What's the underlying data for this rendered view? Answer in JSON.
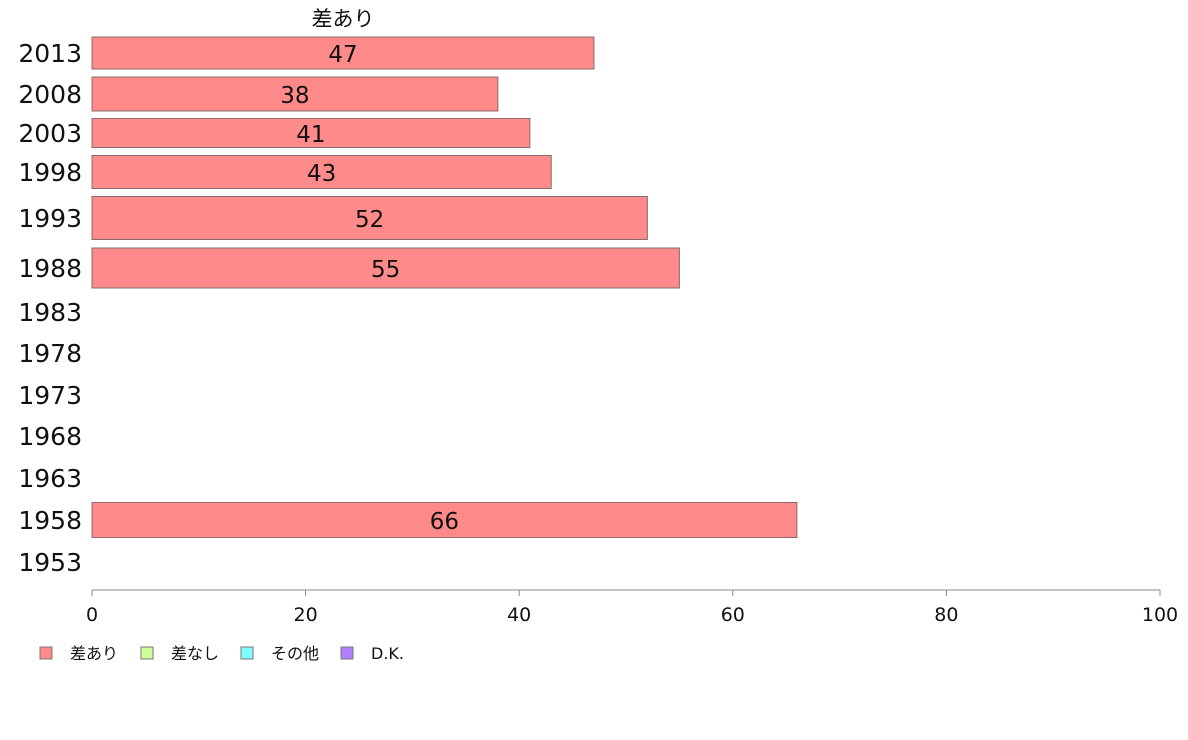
{
  "chart_data": {
    "type": "bar",
    "orientation": "horizontal",
    "title": "",
    "xlabel": "",
    "ylabel": "",
    "xlim": [
      0,
      100
    ],
    "x_ticks": [
      "0",
      "20",
      "40",
      "60",
      "80",
      "100"
    ],
    "grid": false,
    "legend_position": "bottom-left",
    "categories": [
      "2013",
      "2008",
      "2003",
      "1998",
      "1993",
      "1988",
      "1983",
      "1978",
      "1973",
      "1968",
      "1963",
      "1958",
      "1953"
    ],
    "series": [
      {
        "name": "差あり",
        "color": "#ff8a8a",
        "values": [
          47,
          38,
          41,
          43,
          52,
          55,
          null,
          null,
          null,
          null,
          null,
          66,
          null
        ]
      },
      {
        "name": "差なし",
        "color": "#ccff99",
        "values": [
          null,
          null,
          null,
          null,
          null,
          null,
          null,
          null,
          null,
          null,
          null,
          null,
          null
        ]
      },
      {
        "name": "その他",
        "color": "#80ffff",
        "values": [
          null,
          null,
          null,
          null,
          null,
          null,
          null,
          null,
          null,
          null,
          null,
          null,
          null
        ]
      },
      {
        "name": "D.K.",
        "color": "#b080ff",
        "values": [
          null,
          null,
          null,
          null,
          null,
          null,
          null,
          null,
          null,
          null,
          null,
          null,
          null
        ]
      }
    ],
    "bar_series_label": "差あり",
    "value_labels": [
      "47",
      "38",
      "41",
      "43",
      "52",
      "55",
      "",
      "",
      "",
      "",
      "",
      "66",
      ""
    ]
  }
}
